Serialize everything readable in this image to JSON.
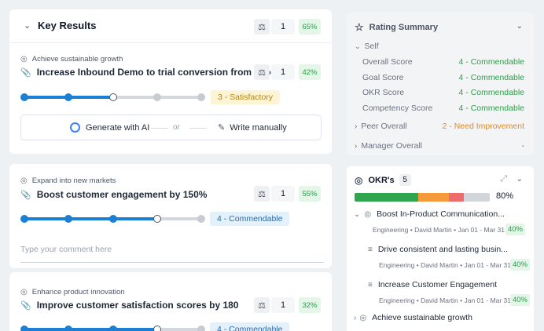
{
  "key_results": {
    "title": "Key Results",
    "weight_icon": "scale-icon",
    "count": "1",
    "percent": "65%",
    "items": [
      {
        "objective": "Achieve sustainable growth",
        "title": "Increase Inbound Demo to trial conversion from 0 to 2...",
        "count": "1",
        "percent": "42%",
        "rating_level": 3,
        "rating_levels_total": 5,
        "rating": "3 - Satisfactory"
      },
      {
        "objective": "Expand into new markets",
        "title": "Boost customer engagement by 150%",
        "count": "1",
        "percent": "55%",
        "rating_level": 4,
        "rating_levels_total": 5,
        "rating": "4 - Commendable",
        "comment_placeholder": "Type your comment here"
      },
      {
        "objective": "Enhance product innovation",
        "title": "Improve customer satisfaction scores by 180",
        "count": "1",
        "percent": "32%",
        "rating_level": 4,
        "rating_levels_total": 5,
        "rating": "4 - Commendable"
      }
    ],
    "ai": {
      "generate": "Generate with AI",
      "or": "or",
      "manual": "Write manually"
    }
  },
  "rating_summary": {
    "title": "Rating Summary",
    "self_label": "Self",
    "rows": [
      {
        "label": "Overall Score",
        "value": "4 - Commendable"
      },
      {
        "label": "Goal Score",
        "value": "4 - Commendable"
      },
      {
        "label": "OKR Score",
        "value": "4 - Commendable"
      },
      {
        "label": "Competency Score",
        "value": "4 - Commendable"
      }
    ],
    "peer_label": "Peer Overall",
    "peer_value": "2 - Need Improvement",
    "manager_label": "Manager Overall",
    "manager_value": "-"
  },
  "okrs": {
    "title": "OKR's",
    "count": "5",
    "progress_percent": "80%",
    "progress_segments": [
      {
        "fraction": 0.47,
        "color": "#2fa54f"
      },
      {
        "fraction": 0.23,
        "color": "#f59a3b"
      },
      {
        "fraction": 0.11,
        "color": "#ef6b6b"
      },
      {
        "fraction": 0.19,
        "color": "#d2d6dc"
      }
    ],
    "items": [
      {
        "title": "Boost In-Product Communication...",
        "meta": "Engineering • David Martin • Jan 01 - Mar 31",
        "percent": "40%"
      },
      {
        "title": "Drive consistent and lasting busin...",
        "meta": "Engineering • David Martin • Jan 01 - Mar 31",
        "percent": "40%"
      },
      {
        "title": "Increase Customer Engagement",
        "meta": "Engineering • David Martin • Jan 01 - Mar 31",
        "percent": "40%"
      },
      {
        "title": "Achieve sustainable growth"
      }
    ]
  }
}
